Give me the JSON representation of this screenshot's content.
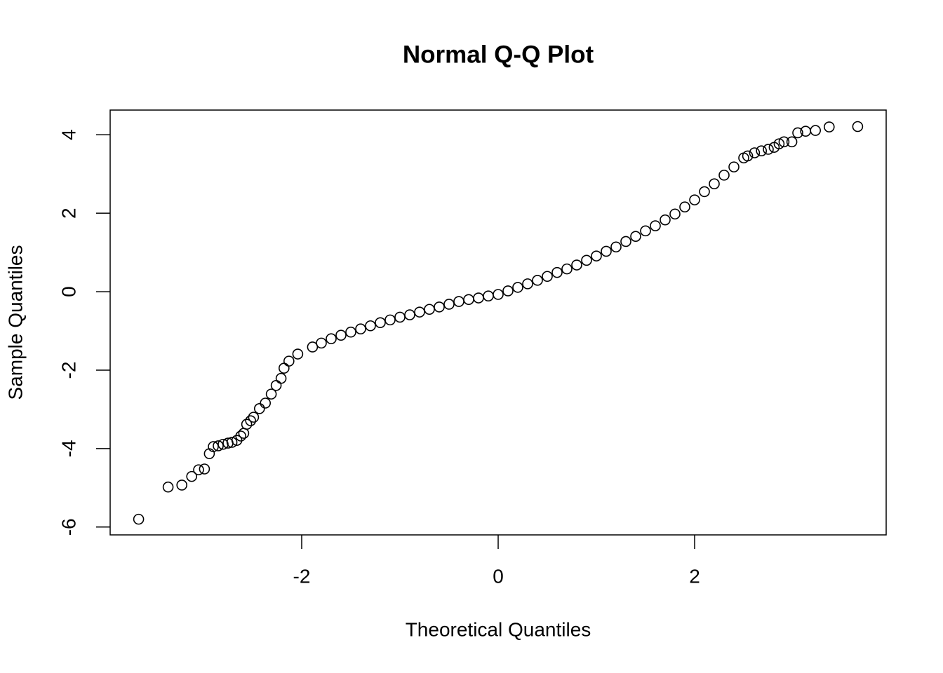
{
  "chart_data": {
    "type": "scatter",
    "title": "Normal Q-Q Plot",
    "x_label": "Theoretical Quantiles",
    "y_label": "Sample Quantiles",
    "x": [
      -3.66,
      -3.36,
      -3.22,
      -3.12,
      -3.05,
      -2.99,
      -2.94,
      -2.9,
      -2.85,
      -2.8,
      -2.75,
      -2.71,
      -2.66,
      -2.62,
      -2.59,
      -2.56,
      -2.52,
      -2.49,
      -2.43,
      -2.37,
      -2.31,
      -2.26,
      -2.21,
      -2.18,
      -2.13,
      -2.04,
      -1.89,
      -1.8,
      -1.7,
      -1.6,
      -1.5,
      -1.4,
      -1.3,
      -1.2,
      -1.1,
      -1.0,
      -0.9,
      -0.8,
      -0.7,
      -0.6,
      -0.5,
      -0.4,
      -0.3,
      -0.2,
      -0.1,
      0,
      0.1,
      0.2,
      0.3,
      0.4,
      0.5,
      0.6,
      0.7,
      0.8,
      0.9,
      1.0,
      1.1,
      1.2,
      1.3,
      1.4,
      1.5,
      1.6,
      1.7,
      1.8,
      1.9,
      2.0,
      2.1,
      2.2,
      2.3,
      2.4,
      2.5,
      2.54,
      2.61,
      2.68,
      2.75,
      2.81,
      2.86,
      2.91,
      2.99,
      3.05,
      3.13,
      3.23,
      3.37,
      3.66
    ],
    "values": [
      -5.8,
      -4.98,
      -4.93,
      -4.71,
      -4.54,
      -4.52,
      -4.13,
      -3.95,
      -3.93,
      -3.89,
      -3.86,
      -3.84,
      -3.79,
      -3.68,
      -3.61,
      -3.38,
      -3.29,
      -3.2,
      -2.98,
      -2.84,
      -2.61,
      -2.39,
      -2.21,
      -1.95,
      -1.77,
      -1.59,
      -1.41,
      -1.31,
      -1.2,
      -1.11,
      -1.03,
      -0.95,
      -0.87,
      -0.79,
      -0.72,
      -0.65,
      -0.59,
      -0.52,
      -0.45,
      -0.39,
      -0.32,
      -0.25,
      -0.2,
      -0.16,
      -0.11,
      -0.07,
      0.02,
      0.11,
      0.2,
      0.29,
      0.39,
      0.49,
      0.58,
      0.68,
      0.8,
      0.91,
      1.03,
      1.14,
      1.28,
      1.41,
      1.55,
      1.68,
      1.83,
      1.98,
      2.16,
      2.34,
      2.55,
      2.75,
      2.97,
      3.18,
      3.41,
      3.46,
      3.54,
      3.59,
      3.63,
      3.68,
      3.77,
      3.82,
      3.82,
      4.05,
      4.09,
      4.11,
      4.2,
      4.21
    ],
    "color": "#000000",
    "xlim": [
      -3.95,
      3.95
    ],
    "xticks": [
      -2,
      0,
      2
    ],
    "ylim": [
      -6.2,
      4.63
    ],
    "yticks": [
      -6,
      -4,
      -2,
      0,
      2,
      4
    ]
  }
}
